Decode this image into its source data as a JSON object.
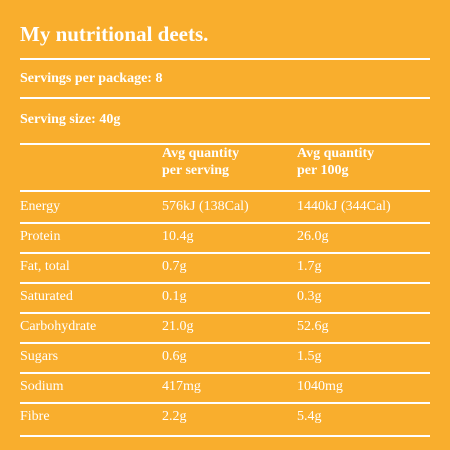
{
  "title": "My nutritional deets.",
  "servings_per_package": "Servings per package: 8",
  "serving_size": "Serving size: 40g",
  "table": {
    "headers": [
      [
        "Avg quantity",
        "per serving"
      ],
      [
        "Avg quantity",
        "per 100g"
      ]
    ],
    "rows": [
      [
        "Energy",
        "576kJ (138Cal)",
        "1440kJ (344Cal)"
      ],
      [
        "Protein",
        "10.4g",
        "26.0g"
      ],
      [
        "Fat, total",
        "0.7g",
        "1.7g"
      ],
      [
        "Saturated",
        "0.1g",
        "0.3g"
      ],
      [
        "Carbohydrate",
        "21.0g",
        "52.6g"
      ],
      [
        "Sugars",
        "0.6g",
        "1.5g"
      ],
      [
        "Sodium",
        "417mg",
        "1040mg"
      ],
      [
        "Fibre",
        "2.2g",
        "5.4g"
      ]
    ]
  }
}
